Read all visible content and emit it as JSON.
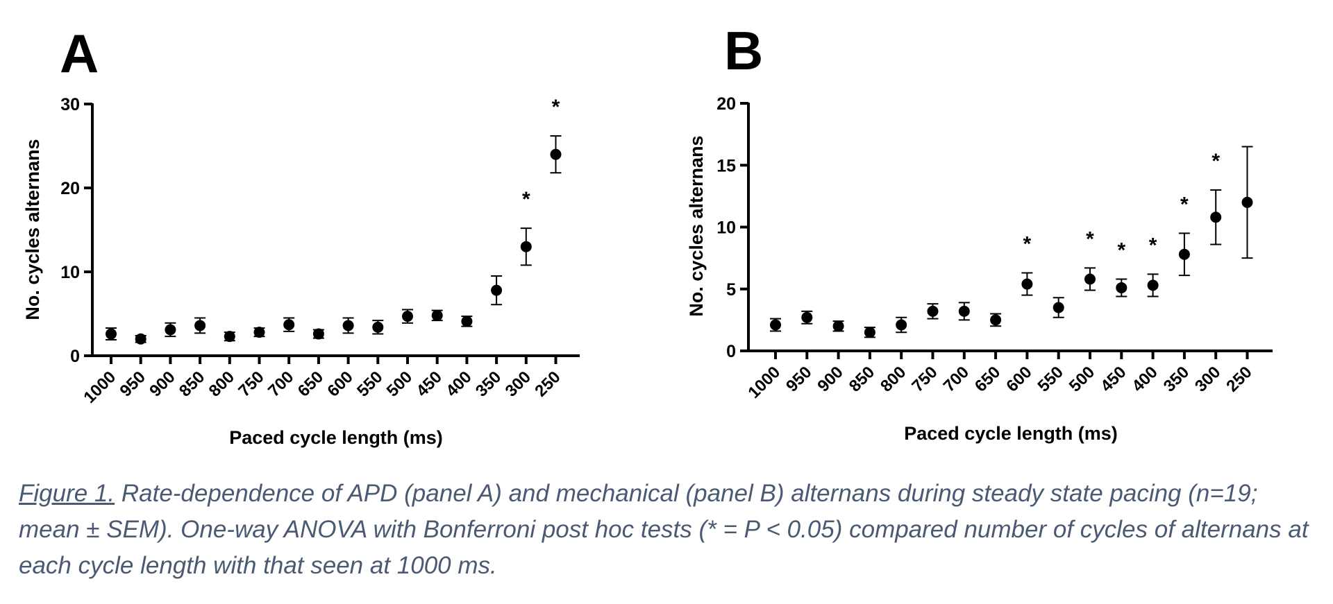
{
  "figure": {
    "caption": {
      "label": "Figure 1.",
      "text": " Rate-dependence of APD (panel A) and mechanical (panel B) alternans during steady state pacing (n=19; mean ± SEM). One-way ANOVA with Bonferroni post hoc tests (* = P < 0.05) compared number of cycles of alternans at each cycle length with that seen at 1000 ms."
    },
    "colors": {
      "marker": "#000000",
      "caption": "#4a5a73"
    }
  },
  "chart_data": [
    {
      "panel": "A",
      "type": "scatter",
      "xlabel": "Paced cycle length (ms)",
      "ylabel": "No. cycles alternans",
      "categories": [
        "1000",
        "950",
        "900",
        "850",
        "800",
        "750",
        "700",
        "650",
        "600",
        "550",
        "500",
        "450",
        "400",
        "350",
        "300",
        "250"
      ],
      "values": [
        2.6,
        2.0,
        3.1,
        3.6,
        2.3,
        2.8,
        3.7,
        2.6,
        3.6,
        3.4,
        4.7,
        4.8,
        4.1,
        7.8,
        13.0,
        24.0
      ],
      "sem": [
        0.7,
        0.4,
        0.8,
        0.9,
        0.5,
        0.5,
        0.8,
        0.5,
        0.9,
        0.8,
        0.8,
        0.6,
        0.6,
        1.7,
        2.2,
        2.2
      ],
      "significant": [
        false,
        false,
        false,
        false,
        false,
        false,
        false,
        false,
        false,
        false,
        false,
        false,
        false,
        false,
        true,
        true
      ],
      "ylim": [
        0,
        30
      ],
      "yticks": [
        0,
        10,
        20,
        30
      ],
      "significance_marker": "*",
      "grid": false,
      "error_bars": "mean ± SEM"
    },
    {
      "panel": "B",
      "type": "scatter",
      "xlabel": "Paced cycle length (ms)",
      "ylabel": "No. cycles alternans",
      "categories": [
        "1000",
        "950",
        "900",
        "850",
        "800",
        "750",
        "700",
        "650",
        "600",
        "550",
        "500",
        "450",
        "400",
        "350",
        "300",
        "250"
      ],
      "values": [
        2.1,
        2.7,
        2.0,
        1.5,
        2.1,
        3.2,
        3.2,
        2.5,
        5.4,
        3.5,
        5.8,
        5.1,
        5.3,
        7.8,
        10.8,
        12.0
      ],
      "sem": [
        0.5,
        0.5,
        0.4,
        0.4,
        0.6,
        0.6,
        0.7,
        0.5,
        0.9,
        0.8,
        0.9,
        0.7,
        0.9,
        1.7,
        2.2,
        4.5
      ],
      "significant": [
        false,
        false,
        false,
        false,
        false,
        false,
        false,
        false,
        true,
        false,
        true,
        true,
        true,
        true,
        true,
        false
      ],
      "ylim": [
        0,
        20
      ],
      "yticks": [
        0,
        5,
        10,
        15,
        20
      ],
      "significance_marker": "*",
      "grid": false,
      "error_bars": "mean ± SEM"
    }
  ]
}
